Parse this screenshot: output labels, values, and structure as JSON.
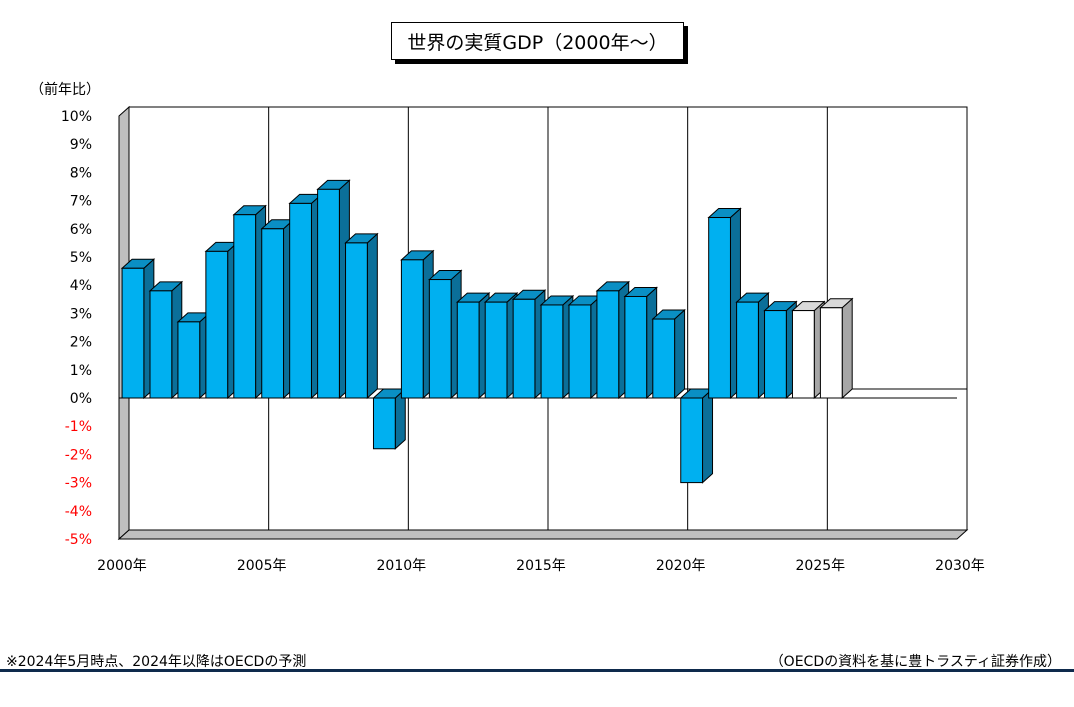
{
  "chart_data": {
    "type": "bar",
    "title": "世界の実質GDP（2000年〜）",
    "ylabel": "（前年比）",
    "x_start": 2000,
    "x_end": 2030,
    "ylim": [
      -5,
      10
    ],
    "ytick_values": [
      10,
      9,
      8,
      7,
      6,
      5,
      4,
      3,
      2,
      1,
      0,
      -1,
      -2,
      -3,
      -4,
      -5
    ],
    "ytick_labels": [
      "10%",
      "9%",
      "8%",
      "7%",
      "6%",
      "5%",
      "4%",
      "3%",
      "2%",
      "1%",
      "0%",
      "-1%",
      "-2%",
      "-3%",
      "-4%",
      "-5%"
    ],
    "xtick_values": [
      2000,
      2005,
      2010,
      2015,
      2020,
      2025,
      2030
    ],
    "xtick_labels": [
      "2000年",
      "2005年",
      "2010年",
      "2015年",
      "2020年",
      "2025年",
      "2030年"
    ],
    "grid": "vertical lines every 5 years",
    "series": [
      {
        "x": [
          2000,
          2001,
          2002,
          2003,
          2004,
          2005,
          2006,
          2007,
          2008,
          2009,
          2010,
          2011,
          2012,
          2013,
          2014,
          2015,
          2016,
          2017,
          2018,
          2019,
          2020,
          2021,
          2022,
          2023,
          2024,
          2025
        ],
        "values": [
          4.6,
          3.8,
          2.7,
          5.2,
          6.5,
          6.0,
          6.9,
          7.4,
          5.5,
          -1.8,
          4.9,
          4.2,
          3.4,
          3.4,
          3.5,
          3.3,
          3.3,
          3.8,
          3.6,
          2.8,
          -3.0,
          6.4,
          3.4,
          3.1,
          3.1,
          3.2
        ],
        "forecast_from": 2024
      }
    ],
    "colors": {
      "actual_front": "#00b0f0",
      "actual_top": "#0a8fc4",
      "actual_side": "#0b6f99",
      "forecast_front": "#ffffff",
      "forecast_top": "#d9d9d9",
      "forecast_side": "#a6a6a6",
      "negative_tick": "#ff0000",
      "floor": "#bfbfbf"
    }
  },
  "footnote": "※2024年5月時点、2024年以降はOECDの予測",
  "source": "（OECDの資料を基に豊トラスティ証券作成）"
}
